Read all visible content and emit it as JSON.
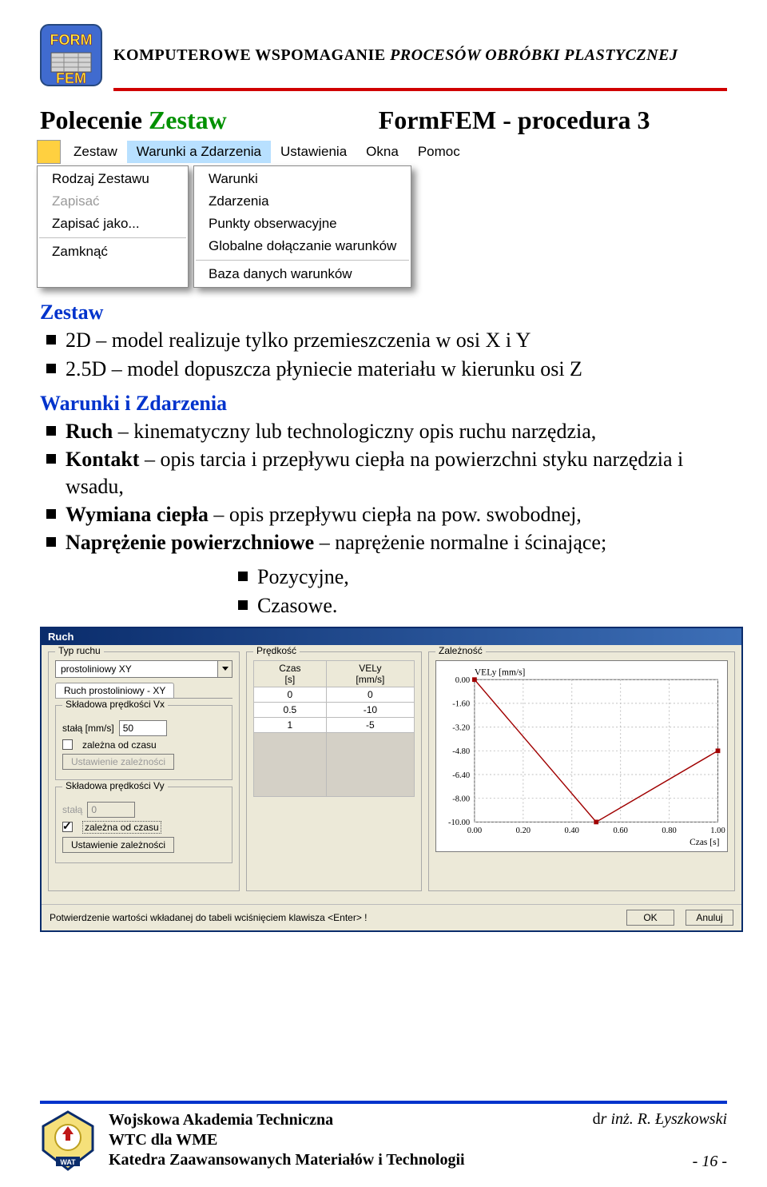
{
  "header": {
    "title_plain": "KOMPUTEROWE WSPOMAGANIE ",
    "title_italic": "PROCESÓW OBRÓBKI PLASTYCZNEJ",
    "rule_color": "#d00000"
  },
  "title": {
    "left_plain": "Polecenie ",
    "left_green": "Zestaw",
    "right": "FormFEM - procedura 3"
  },
  "menubar": {
    "items": [
      "Zestaw",
      "Warunki a Zdarzenia",
      "Ustawienia",
      "Okna",
      "Pomoc"
    ],
    "selected_index": 1
  },
  "menu_zestaw": {
    "items": [
      {
        "label": "Rodzaj Zestawu",
        "disabled": false
      },
      {
        "label": "Zapisać",
        "disabled": true
      },
      {
        "label": "Zapisać jako...",
        "disabled": false
      },
      {
        "sep": true
      },
      {
        "label": "Zamknąć",
        "disabled": false
      }
    ]
  },
  "menu_warunki": {
    "items": [
      {
        "label": "Warunki"
      },
      {
        "label": "Zdarzenia"
      },
      {
        "label": "Punkty obserwacyjne"
      },
      {
        "label": "Globalne dołączanie warunków"
      },
      {
        "sep": true
      },
      {
        "label": "Baza danych warunków"
      }
    ]
  },
  "body": {
    "heading": "Zestaw",
    "li1": "2D – model realizuje tylko przemieszczenia w osi X i Y",
    "li2": "2.5D – model dopuszcza płyniecie materiału w kierunku osi Z",
    "heading2": "Warunki i Zdarzenia",
    "li3_b": "Ruch",
    "li3_rest": " – kinematyczny lub technologiczny opis ruchu narzędzia,",
    "li4_b": "Kontakt",
    "li4_rest": " – opis tarcia i przepływu ciepła na powierzchni styku narzędzia i wsadu,",
    "li5_b": "Wymiana ciepła",
    "li5_rest": " – opis przepływu ciepła na pow. swobodnej,",
    "li6_b": "Naprężenie powierzchniowe",
    "li6_rest": " – naprężenie normalne i ścinające;",
    "li7": "Pozycyjne,",
    "li8": "Czasowe."
  },
  "dialog": {
    "title": "Ruch",
    "typ_label": "Typ ruchu",
    "combo_selected": "prostoliniowy XY",
    "tab1": "Ruch prostoliniowy - XY",
    "vx_group": "Składowa prędkości Vx",
    "vx_const_label": "stałą [mm/s]",
    "vx_const_value": "50",
    "zalezna_label": "zależna od czasu",
    "ust_btn": "Ustawienie zależności",
    "vy_group": "Składowa prędkości Vy",
    "vy_const_label": "stałą",
    "vy_const_value": "0",
    "predkosc_group": "Prędkość",
    "table": {
      "headers": [
        "Czas\n[s]",
        "VELy\n[mm/s]"
      ],
      "rows": [
        [
          "0",
          "0"
        ],
        [
          "0.5",
          "-10"
        ],
        [
          "1",
          "-5"
        ]
      ]
    },
    "zaleznosc_group": "Zależność",
    "chart_title": "VELy [mm/s]",
    "chart": {
      "x_label": "Czas [s]",
      "x_ticks": [
        "0.00",
        "0.20",
        "0.40",
        "0.60",
        "0.80",
        "1.00"
      ],
      "y_ticks": [
        "0.00",
        "-1.60",
        "-3.20",
        "-4.80",
        "-6.40",
        "-8.00",
        "-10.00"
      ],
      "points_x": [
        0,
        0.5,
        1.0
      ],
      "points_y": [
        0,
        -10,
        -5
      ],
      "xlim": [
        0,
        1
      ],
      "ylim": [
        -10,
        0
      ],
      "line_color": "#a00000",
      "bg_color": "#ffffff",
      "grid_color": "#bdbdbd"
    },
    "footer_note": "Potwierdzenie wartości wkładanej do tabeli wciśnięciem klawisza <Enter> !",
    "ok": "OK",
    "cancel": "Anuluj"
  },
  "footer": {
    "line1": "Wojskowa Akademia Techniczna",
    "line2": "WTC dla WME",
    "line3": "Katedra Zaawansowanych Materiałów i Technologii",
    "author_prefix": "d",
    "author_rest": "r inż. R. Łyszkowski",
    "page": "- 16 -"
  },
  "colors": {
    "blue": "#0033cc",
    "green": "#009000"
  }
}
